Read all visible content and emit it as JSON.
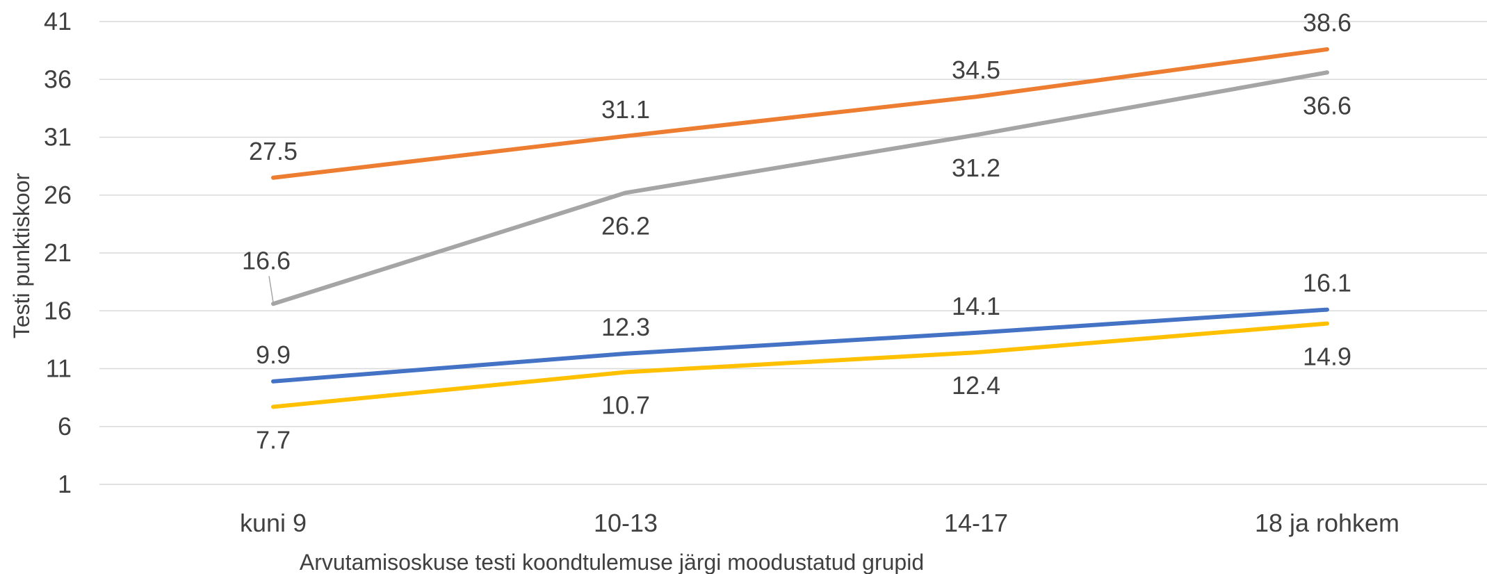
{
  "chart_data": {
    "type": "line",
    "title": "",
    "xlabel": "Arvutamisoskuse testi koondtulemuse järgi moodustatud grupid",
    "ylabel": "Testi punktiskoor",
    "categories": [
      "kuni 9",
      "10-13",
      "14-17",
      "18 ja rohkem"
    ],
    "ylim": [
      1,
      41
    ],
    "yticks": [
      1,
      6,
      11,
      16,
      21,
      26,
      31,
      36,
      41
    ],
    "grid": true,
    "legend": "none",
    "series": [
      {
        "color": "#ED7D31",
        "values": [
          27.5,
          31.1,
          34.5,
          38.6
        ],
        "labels": [
          "27.5",
          "31.1",
          "34.5",
          "38.6"
        ],
        "label_position": [
          "above",
          "above",
          "above",
          "above"
        ]
      },
      {
        "color": "#A5A5A5",
        "values": [
          16.6,
          26.2,
          31.2,
          36.6
        ],
        "labels": [
          "16.6",
          "26.2",
          "31.2",
          "36.6"
        ],
        "label_position": [
          "above",
          "below",
          "below",
          "below"
        ]
      },
      {
        "color": "#4472C4",
        "values": [
          9.9,
          12.3,
          14.1,
          16.1
        ],
        "labels": [
          "9.9",
          "12.3",
          "14.1",
          "16.1"
        ],
        "label_position": [
          "above",
          "above",
          "above",
          "above"
        ]
      },
      {
        "color": "#FFC000",
        "values": [
          7.7,
          10.7,
          12.4,
          14.9
        ],
        "labels": [
          "7.7",
          "10.7",
          "12.4",
          "14.9"
        ],
        "label_position": [
          "below",
          "below",
          "below",
          "below"
        ]
      }
    ]
  }
}
